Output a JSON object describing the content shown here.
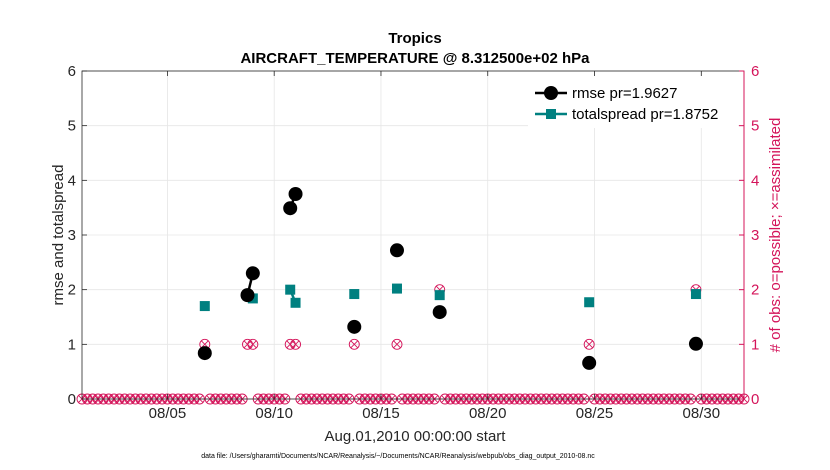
{
  "chart_data": {
    "type": "line",
    "title": "Tropics",
    "subtitle": "AIRCRAFT_TEMPERATURE @ 8.312500e+02 hPa",
    "xlabel": "Aug.01,2010 00:00:00 start",
    "ylabel_left": "rmse and totalspread",
    "ylabel_right": "# of obs: o=possible; ×=assimilated",
    "footnote": "data file: /Users/gharamti/Documents/NCAR/Reanalysis/~/Documents/NCAR/Reanalysis/webpub/obs_diag_output_2010-08.nc",
    "xlim": [
      1,
      32
    ],
    "ylim": [
      0,
      6
    ],
    "ylim_right": [
      0,
      6
    ],
    "x_ticks": [
      5,
      10,
      15,
      20,
      25,
      30
    ],
    "x_tick_labels": [
      "08/05",
      "08/10",
      "08/15",
      "08/20",
      "08/25",
      "08/30"
    ],
    "y_ticks": [
      0,
      1,
      2,
      3,
      4,
      5,
      6
    ],
    "y_tick_labels": [
      "0",
      "1",
      "2",
      "3",
      "4",
      "5",
      "6"
    ],
    "y_right_tick_labels": [
      "0",
      "1",
      "2",
      "3",
      "4",
      "5",
      "6"
    ],
    "grid": true,
    "legend_position": "top-right",
    "colors": {
      "rmse": "#000000",
      "totalspread": "#008080",
      "obs": "#d4145a",
      "grid": "#e6e6e6"
    },
    "series": [
      {
        "name": "rmse pr=1.9627",
        "key": "rmse",
        "x": [
          6.75,
          8.75,
          9.0,
          10.75,
          11.0,
          13.75,
          15.75,
          17.75,
          24.75,
          29.75
        ],
        "values": [
          0.84,
          1.9,
          2.3,
          3.49,
          3.75,
          1.32,
          2.72,
          1.59,
          0.66,
          1.01
        ]
      },
      {
        "name": "totalspread pr=1.8752",
        "key": "totalspread",
        "x": [
          6.75,
          8.75,
          9.0,
          10.75,
          11.0,
          13.75,
          15.75,
          17.75,
          24.75,
          29.75
        ],
        "values": [
          1.7,
          1.9,
          1.84,
          2.0,
          1.76,
          1.92,
          2.02,
          1.9,
          1.77,
          1.92
        ]
      }
    ],
    "obs_counts": {
      "name": "# of obs",
      "x_start": 1.0,
      "x_step": 0.25,
      "nonzero": [
        {
          "x": 6.75,
          "count": 1
        },
        {
          "x": 8.75,
          "count": 1
        },
        {
          "x": 9.0,
          "count": 1
        },
        {
          "x": 10.75,
          "count": 1
        },
        {
          "x": 11.0,
          "count": 1
        },
        {
          "x": 13.75,
          "count": 1
        },
        {
          "x": 15.75,
          "count": 1
        },
        {
          "x": 17.75,
          "count": 2
        },
        {
          "x": 24.75,
          "count": 1
        },
        {
          "x": 29.75,
          "count": 2
        }
      ]
    }
  }
}
